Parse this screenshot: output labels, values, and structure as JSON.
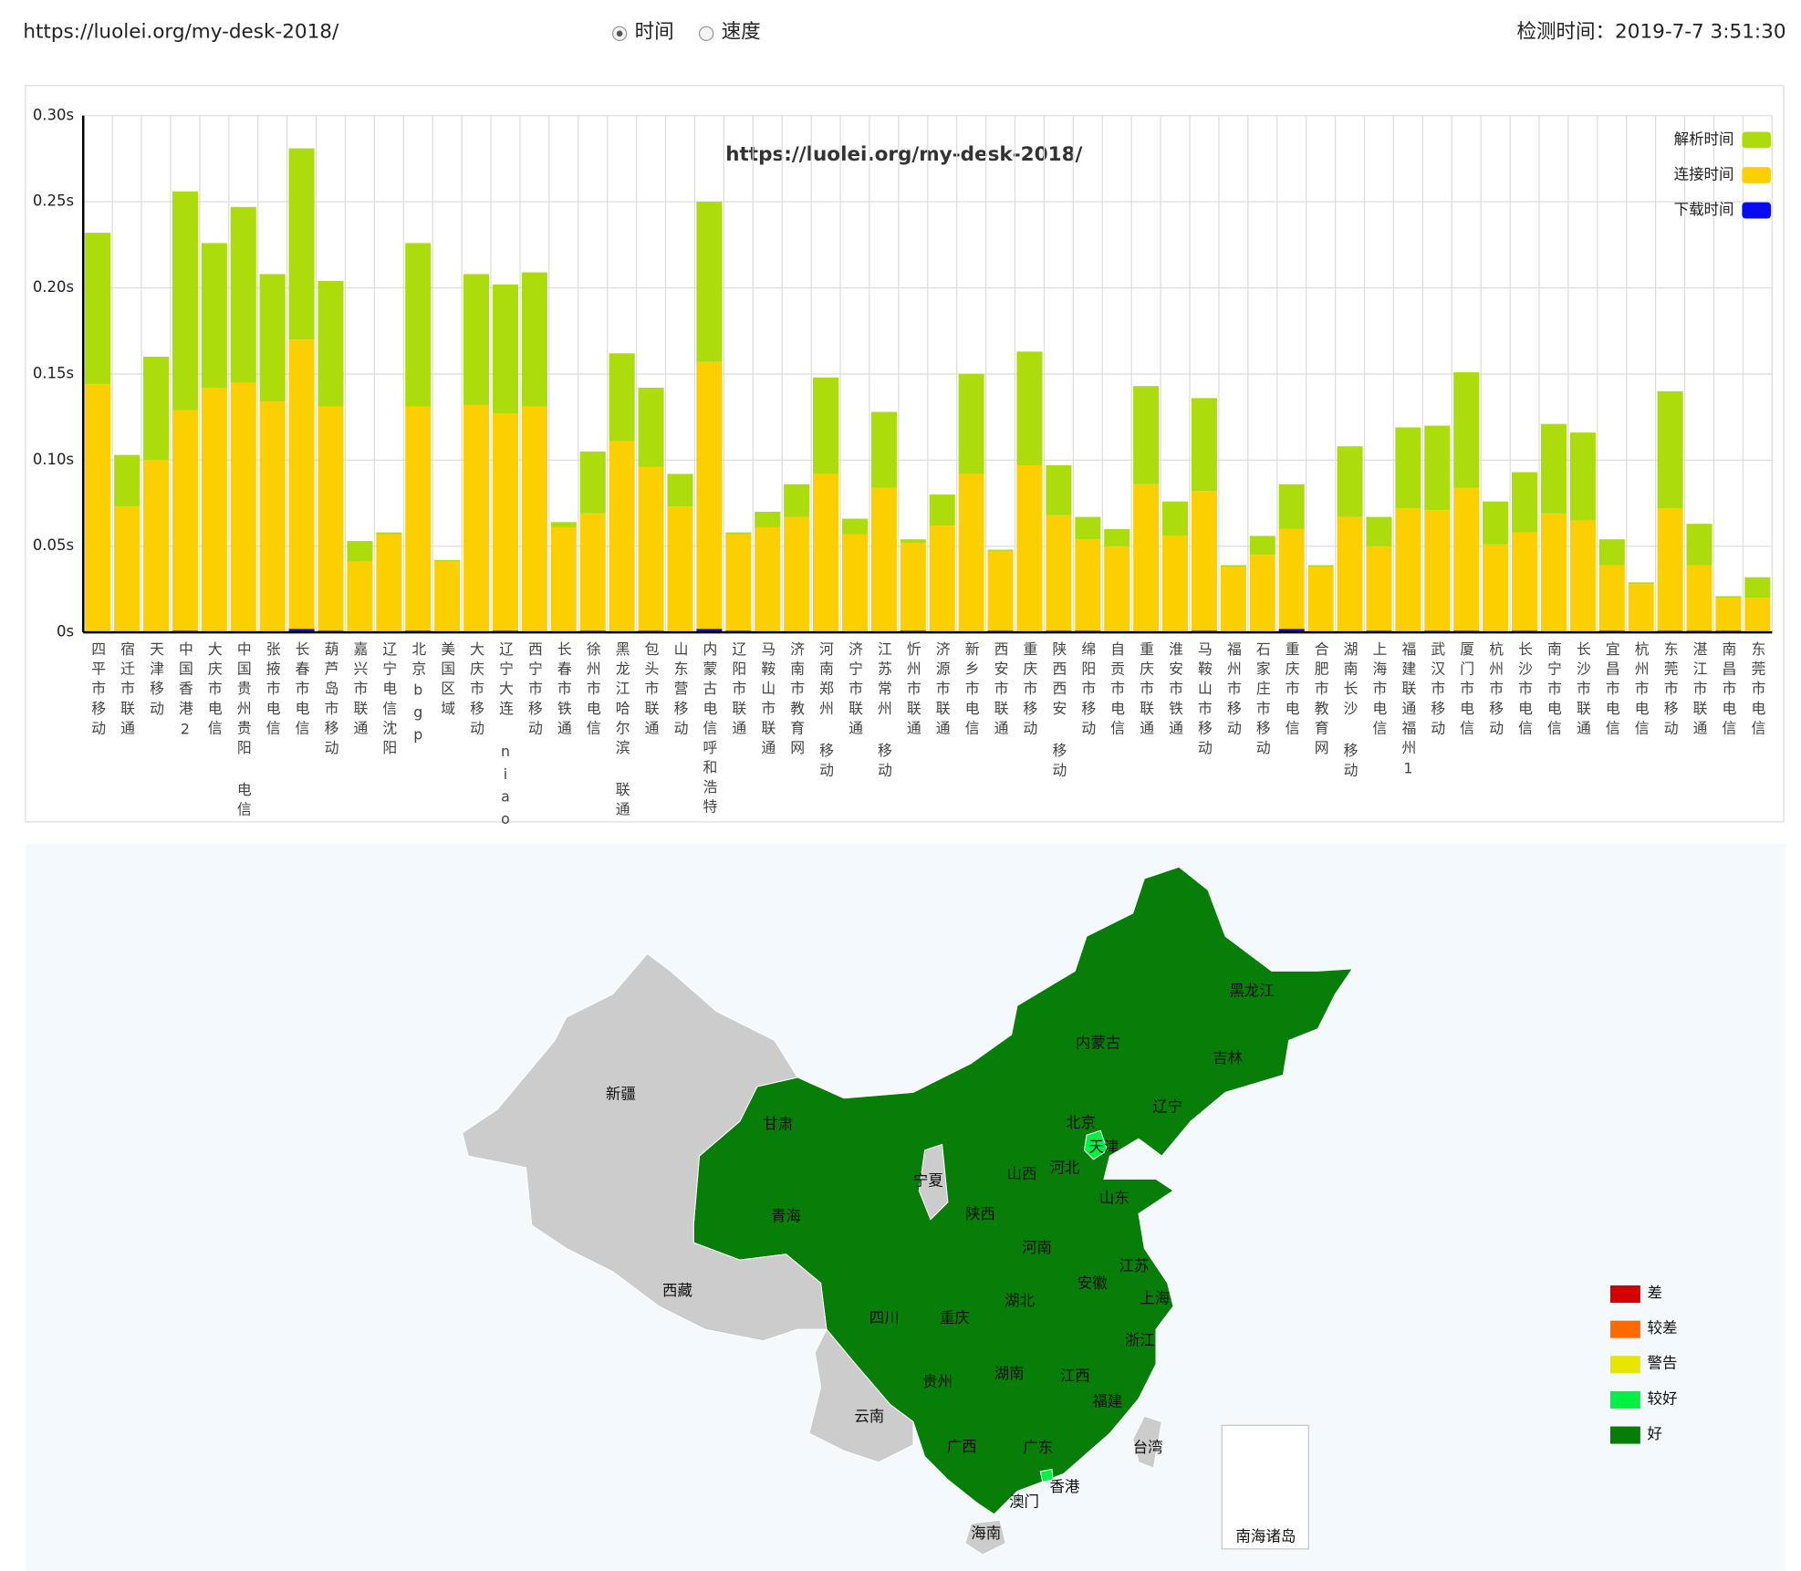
{
  "header": {
    "url": "https://luolei.org/my-desk-2018/",
    "radio_options": [
      "时间",
      "速度"
    ],
    "check_time": "检测时间：2019-7-7 3:51:30"
  },
  "chart_data": {
    "type": "bar",
    "stacked": true,
    "title": "https://luolei.org/my-desk-2018/",
    "categories": [
      "四平市移动",
      "宿迁市联通",
      "天津移动",
      "中国香港2",
      "大庆市电信",
      "中国贵州贵阳 电信",
      "张掖市电信",
      "长春市电信",
      "葫芦岛市移动",
      "嘉兴市联通",
      "辽宁电信沈阳",
      "北京bgp",
      "美国区域",
      "大庆市移动",
      "辽宁大连 niao",
      "西宁市移动",
      "长春市铁通",
      "徐州市电信",
      "黑龙江哈尔滨 联通",
      "包头市联通",
      "山东营移动",
      "内蒙古电信呼和浩特",
      "辽阳市联通",
      "马鞍山市联通",
      "济南市教育网",
      "河南郑州 移动",
      "济宁市联通",
      "江苏常州 移动",
      "忻州市联通",
      "济源市联通",
      "新乡市电信",
      "西安市联通",
      "重庆市移动",
      "陕西西安 移动",
      "绵阳市移动",
      "自贡市电信",
      "重庆市联通",
      "淮安市铁通",
      "马鞍山市移动",
      "福州市移动",
      "石家庄市移动",
      "重庆市电信",
      "合肥市教育网",
      "湖南长沙 移动",
      "上海市电信",
      "福建联通福州1",
      "武汉市移动",
      "厦门市电信",
      "杭州市移动",
      "长沙市电信",
      "南宁市电信",
      "长沙市联通",
      "宜昌市电信",
      "杭州市电信",
      "东莞市移动",
      "湛江市联通",
      "南昌市电信",
      "东莞市电信"
    ],
    "series": [
      {
        "name": "下载时间",
        "color": "#0a0af0",
        "values": [
          0,
          0,
          0,
          0.001,
          0,
          0,
          0,
          0.002,
          0.001,
          0,
          0,
          0.001,
          0,
          0,
          0.001,
          0,
          0,
          0.001,
          0,
          0.001,
          0,
          0.002,
          0.001,
          0,
          0,
          0,
          0,
          0,
          0.001,
          0,
          0,
          0.001,
          0,
          0.001,
          0.001,
          0,
          0,
          0,
          0.001,
          0,
          0,
          0.002,
          0,
          0,
          0.001,
          0,
          0.001,
          0.001,
          0,
          0.001,
          0,
          0,
          0.001,
          0,
          0.001,
          0.001,
          0.001,
          0
        ]
      },
      {
        "name": "连接时间",
        "color": "#fcd000",
        "values": [
          0.144,
          0.073,
          0.1,
          0.128,
          0.142,
          0.145,
          0.134,
          0.168,
          0.13,
          0.041,
          0.057,
          0.13,
          0.041,
          0.132,
          0.126,
          0.131,
          0.061,
          0.068,
          0.111,
          0.095,
          0.073,
          0.155,
          0.056,
          0.061,
          0.067,
          0.092,
          0.057,
          0.084,
          0.051,
          0.062,
          0.092,
          0.046,
          0.097,
          0.067,
          0.053,
          0.05,
          0.086,
          0.056,
          0.081,
          0.038,
          0.045,
          0.058,
          0.038,
          0.067,
          0.049,
          0.072,
          0.07,
          0.083,
          0.051,
          0.057,
          0.069,
          0.065,
          0.038,
          0.028,
          0.071,
          0.038,
          0.019,
          0.02
        ]
      },
      {
        "name": "解析时间",
        "color": "#acdc0c",
        "values": [
          0.088,
          0.03,
          0.06,
          0.127,
          0.084,
          0.102,
          0.074,
          0.111,
          0.073,
          0.012,
          0.001,
          0.095,
          0.001,
          0.076,
          0.075,
          0.078,
          0.003,
          0.036,
          0.051,
          0.046,
          0.019,
          0.093,
          0.001,
          0.009,
          0.019,
          0.056,
          0.009,
          0.044,
          0.002,
          0.018,
          0.058,
          0.001,
          0.066,
          0.029,
          0.013,
          0.01,
          0.057,
          0.02,
          0.054,
          0.001,
          0.011,
          0.026,
          0.001,
          0.041,
          0.017,
          0.047,
          0.049,
          0.067,
          0.025,
          0.035,
          0.052,
          0.051,
          0.015,
          0.001,
          0.068,
          0.024,
          0.001,
          0.012
        ]
      }
    ],
    "ylim": [
      0,
      0.3
    ],
    "yticks": [
      {
        "value": 0,
        "label": "0s"
      },
      {
        "value": 0.05,
        "label": "0.05s"
      },
      {
        "value": 0.1,
        "label": "0.10s"
      },
      {
        "value": 0.15,
        "label": "0.15s"
      },
      {
        "value": 0.2,
        "label": "0.20s"
      },
      {
        "value": 0.25,
        "label": "0.25s"
      },
      {
        "value": 0.3,
        "label": "0.30s"
      }
    ],
    "grid": true,
    "legend": "top-right"
  },
  "map": {
    "regions": [
      "新疆",
      "西藏",
      "青海",
      "甘肃",
      "宁夏",
      "内蒙古",
      "黑龙江",
      "吉林",
      "辽宁",
      "北京",
      "天津",
      "河北",
      "山西",
      "山东",
      "陕西",
      "河南",
      "江苏",
      "安徽",
      "上海",
      "湖北",
      "四川",
      "重庆",
      "浙江",
      "江西",
      "湖南",
      "贵州",
      "福建",
      "云南",
      "广西",
      "广东",
      "台湾",
      "香港",
      "澳门",
      "海南",
      "南海诸岛"
    ],
    "legend": [
      {
        "label": "差",
        "color": "#d40000"
      },
      {
        "label": "较差",
        "color": "#ff6a00"
      },
      {
        "label": "警告",
        "color": "#e6e600"
      },
      {
        "label": "较好",
        "color": "#00f045"
      },
      {
        "label": "好",
        "color": "#067d06"
      }
    ]
  }
}
